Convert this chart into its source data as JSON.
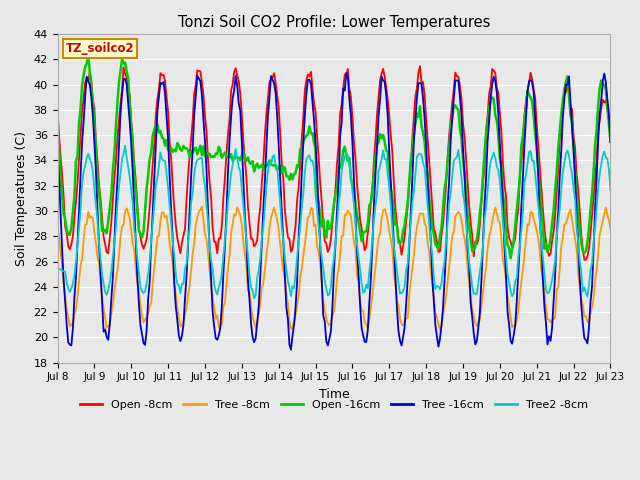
{
  "title": "Tonzi Soil CO2 Profile: Lower Temperatures",
  "xlabel": "Time",
  "ylabel": "Soil Temperatures (C)",
  "ylim": [
    18,
    44
  ],
  "xlim": [
    0,
    360
  ],
  "fig_bg_color": "#e8e8e8",
  "plot_bg_color": "#e8e8e8",
  "annotation_text": "TZ_soilco2",
  "annotation_bg": "#ffffcc",
  "annotation_border": "#cc8800",
  "series": {
    "open_8cm": {
      "color": "#ff0000",
      "label": "Open -8cm",
      "lw": 1.3
    },
    "tree_8cm": {
      "color": "#ff9900",
      "label": "Tree -8cm",
      "lw": 1.3
    },
    "open_16cm": {
      "color": "#00cc00",
      "label": "Open -16cm",
      "lw": 1.8
    },
    "tree_16cm": {
      "color": "#0000cc",
      "label": "Tree -16cm",
      "lw": 1.3
    },
    "tree2_8cm": {
      "color": "#00cccc",
      "label": "Tree2 -8cm",
      "lw": 1.3
    }
  },
  "xtick_labels": [
    "Jul 8",
    "Jul 9",
    "Jul 10",
    "Jul 11",
    "Jul 12",
    "Jul 13",
    "Jul 14",
    "Jul 15",
    "Jul 16",
    "Jul 17",
    "Jul 18",
    "Jul 19",
    "Jul 20",
    "Jul 21",
    "Jul 22",
    "Jul 23"
  ],
  "xtick_positions": [
    0,
    24,
    48,
    72,
    96,
    120,
    144,
    168,
    192,
    216,
    240,
    264,
    288,
    312,
    336,
    360
  ],
  "ytick_labels": [
    "18",
    "20",
    "22",
    "24",
    "26",
    "28",
    "30",
    "32",
    "34",
    "36",
    "38",
    "40",
    "42",
    "44"
  ],
  "ytick_positions": [
    18,
    20,
    22,
    24,
    26,
    28,
    30,
    32,
    34,
    36,
    38,
    40,
    42,
    44
  ]
}
